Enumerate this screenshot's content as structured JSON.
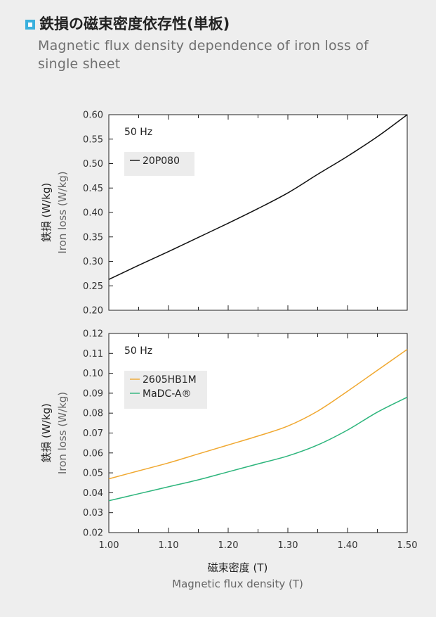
{
  "title_ja": "鉄損の磁束密度依存性(単板)",
  "title_en": "Magnetic flux density dependence of iron loss of single sheet",
  "colors": {
    "accent": "#3ab0dd",
    "background": "#eeeeee",
    "series_20P080": "#111111",
    "series_2605HB1M": "#f0a830",
    "series_MaDC-A": "#2db57c"
  },
  "chart_data": [
    {
      "type": "line",
      "ylabel_ja": "鉄損 (W/kg)",
      "ylabel_en": "Iron loss (W/kg)",
      "annotation": "50 Hz",
      "xlim": [
        1.0,
        1.5
      ],
      "ylim": [
        0.2,
        0.6
      ],
      "yticks": [
        "0.20",
        "0.25",
        "0.30",
        "0.35",
        "0.40",
        "0.45",
        "0.50",
        "0.55",
        "0.60"
      ],
      "legend_position": "top-left",
      "series": [
        {
          "name": "20P080",
          "color": "#111111",
          "x": [
            1.0,
            1.05,
            1.1,
            1.15,
            1.2,
            1.25,
            1.3,
            1.35,
            1.4,
            1.45,
            1.5
          ],
          "y": [
            0.263,
            0.292,
            0.32,
            0.349,
            0.378,
            0.408,
            0.44,
            0.478,
            0.515,
            0.555,
            0.6
          ]
        }
      ]
    },
    {
      "type": "line",
      "ylabel_ja": "鉄損 (W/kg)",
      "ylabel_en": "Iron loss (W/kg)",
      "xlabel_ja": "磁束密度 (T)",
      "xlabel_en": "Magnetic flux density (T)",
      "annotation": "50 Hz",
      "xlim": [
        1.0,
        1.5
      ],
      "ylim": [
        0.02,
        0.12
      ],
      "xticks": [
        "1.00",
        "1.10",
        "1.20",
        "1.30",
        "1.40",
        "1.50"
      ],
      "yticks": [
        "0.02",
        "0.03",
        "0.04",
        "0.05",
        "0.06",
        "0.07",
        "0.08",
        "0.09",
        "0.10",
        "0.11",
        "0.12"
      ],
      "legend_position": "top-left",
      "series": [
        {
          "name": "2605HB1M",
          "color": "#f0a830",
          "x": [
            1.0,
            1.05,
            1.1,
            1.15,
            1.2,
            1.25,
            1.3,
            1.35,
            1.4,
            1.45,
            1.5
          ],
          "y": [
            0.047,
            0.051,
            0.055,
            0.0595,
            0.064,
            0.0685,
            0.0735,
            0.081,
            0.091,
            0.1015,
            0.112
          ]
        },
        {
          "name": "MaDC-A®",
          "color": "#2db57c",
          "x": [
            1.0,
            1.05,
            1.1,
            1.15,
            1.2,
            1.25,
            1.3,
            1.35,
            1.4,
            1.45,
            1.5
          ],
          "y": [
            0.036,
            0.0395,
            0.043,
            0.0465,
            0.0505,
            0.0545,
            0.0585,
            0.064,
            0.0715,
            0.0805,
            0.088
          ]
        }
      ]
    }
  ]
}
